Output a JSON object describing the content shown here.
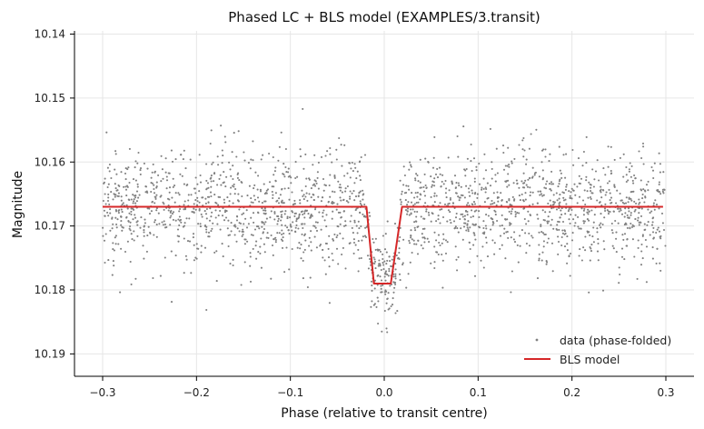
{
  "chart_data": {
    "type": "scatter",
    "title": "Phased LC + BLS model (EXAMPLES/3.transit)",
    "xlabel": "Phase (relative to transit centre)",
    "ylabel": "Magnitude",
    "xlim": [
      -0.33,
      0.33
    ],
    "ylim": [
      10.1935,
      10.1395
    ],
    "y_inverted": true,
    "grid": true,
    "legend_position": "bottom-right",
    "x_ticks": [
      -0.3,
      -0.2,
      -0.1,
      0.0,
      0.1,
      0.2,
      0.3
    ],
    "x_tick_labels": [
      "−0.3",
      "−0.2",
      "−0.1",
      "0.0",
      "0.1",
      "0.2",
      "0.3"
    ],
    "y_ticks": [
      10.14,
      10.15,
      10.16,
      10.17,
      10.18,
      10.19
    ],
    "y_tick_labels": [
      "10.14",
      "10.15",
      "10.16",
      "10.17",
      "10.18",
      "10.19"
    ],
    "series": [
      {
        "name": "data (phase-folded)",
        "kind": "scatter",
        "color": "#808080",
        "x_range": [
          -0.3,
          0.3
        ],
        "baseline_mag": 10.167,
        "scatter_sigma": 0.0045,
        "transit_phase_range": [
          -0.02,
          0.02
        ],
        "transit_mag": 10.178,
        "num_points": 2200
      },
      {
        "name": "BLS model",
        "kind": "line",
        "color": "#d62728",
        "x": [
          -0.3,
          -0.019,
          -0.011,
          0.007,
          0.019,
          0.297
        ],
        "y": [
          10.167,
          10.167,
          10.179,
          10.179,
          10.167,
          10.167
        ]
      }
    ]
  }
}
